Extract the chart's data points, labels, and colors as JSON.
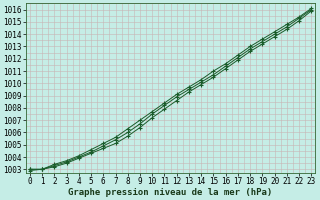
{
  "xlabel": "Graphe pression niveau de la mer (hPa)",
  "xlim": [
    -0.3,
    23.3
  ],
  "ylim": [
    1002.7,
    1016.5
  ],
  "yticks": [
    1003,
    1004,
    1005,
    1006,
    1007,
    1008,
    1009,
    1010,
    1011,
    1012,
    1013,
    1014,
    1015,
    1016
  ],
  "xticks": [
    0,
    1,
    2,
    3,
    4,
    5,
    6,
    7,
    8,
    9,
    10,
    11,
    12,
    13,
    14,
    15,
    16,
    17,
    18,
    19,
    20,
    21,
    22,
    23
  ],
  "bg_color": "#c5ede6",
  "grid_color": "#c8b4b4",
  "line_color": "#1a5c2a",
  "line1": [
    1003.0,
    1003.0,
    1003.2,
    1003.5,
    1003.9,
    1004.3,
    1004.7,
    1005.1,
    1005.7,
    1006.4,
    1007.2,
    1007.9,
    1008.6,
    1009.3,
    1009.9,
    1010.5,
    1011.2,
    1011.9,
    1012.6,
    1013.2,
    1013.8,
    1014.4,
    1015.1,
    1015.9
  ],
  "line2": [
    1003.0,
    1003.0,
    1003.3,
    1003.6,
    1004.0,
    1004.4,
    1004.9,
    1005.4,
    1006.0,
    1006.7,
    1007.5,
    1008.2,
    1008.9,
    1009.5,
    1010.1,
    1010.7,
    1011.4,
    1012.1,
    1012.8,
    1013.4,
    1014.0,
    1014.6,
    1015.3,
    1016.0
  ],
  "line3": [
    1002.9,
    1003.0,
    1003.4,
    1003.7,
    1004.1,
    1004.6,
    1005.1,
    1005.6,
    1006.3,
    1007.0,
    1007.7,
    1008.4,
    1009.1,
    1009.7,
    1010.3,
    1011.0,
    1011.6,
    1012.3,
    1013.0,
    1013.6,
    1014.2,
    1014.8,
    1015.4,
    1016.1
  ],
  "marker": "+",
  "marker_size": 3,
  "linewidth": 0.7,
  "xlabel_fontsize": 6.5,
  "tick_fontsize": 5.5,
  "figsize": [
    3.2,
    2.0
  ],
  "dpi": 100,
  "minor_grid_color": "#c8b4b4",
  "minor_per_major": 2
}
